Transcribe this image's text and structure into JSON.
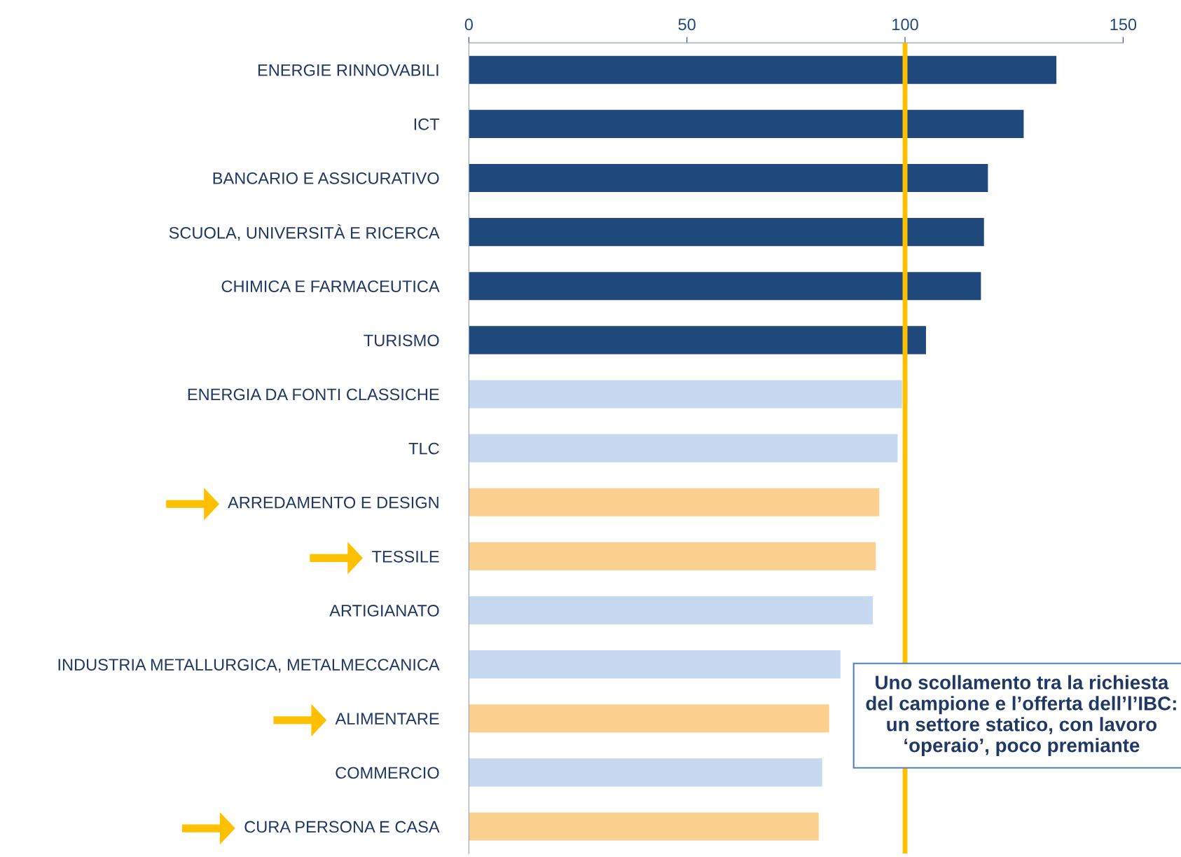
{
  "chart_data": {
    "type": "bar",
    "orientation": "horizontal",
    "categories": [
      "ENERGIE RINNOVABILI",
      "ICT",
      "BANCARIO E ASSICURATIVO",
      "SCUOLA, UNIVERSITÀ E RICERCA",
      "CHIMICA E FARMACEUTICA",
      "TURISMO",
      "ENERGIA DA FONTI CLASSICHE",
      "TLC",
      "ARREDAMENTO E DESIGN",
      "TESSILE",
      "ARTIGIANATO",
      "INDUSTRIA METALLURGICA, METALMECCANICA",
      "ALIMENTARE",
      "COMMERCIO",
      "CURA PERSONA E CASA"
    ],
    "values": [
      134.7,
      127.2,
      119,
      118.1,
      117.4,
      104.8,
      99.3,
      98.3,
      94.1,
      93.3,
      92.6,
      85.2,
      82.6,
      81,
      80.2
    ],
    "colors": [
      "#1f497d",
      "#1f497d",
      "#1f497d",
      "#1f497d",
      "#1f497d",
      "#1f497d",
      "#c6d9f0",
      "#c6d9f0",
      "#fcd08f",
      "#fcd08f",
      "#c6d9f0",
      "#c6d9f0",
      "#fcd08f",
      "#c6d9f0",
      "#fcd08f"
    ],
    "xlim": [
      0,
      150
    ],
    "xticks": [
      0,
      50,
      100,
      150
    ],
    "grid": false,
    "ref_lines": [
      {
        "axis": "x",
        "value": 100,
        "color": "#ffc000"
      }
    ],
    "annotations": [
      "Uno scollamento tra la richiesta del campione e l’offerta dell’l’IBC: un settore statico, con lavoro ‘operaio’, poco premiante"
    ]
  }
}
